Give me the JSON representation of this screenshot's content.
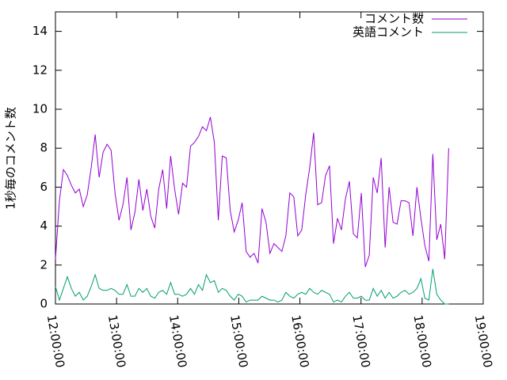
{
  "chart_data": {
    "type": "line",
    "ylabel": "1秒毎のコメント数",
    "x": [
      12,
      12.065,
      12.13,
      12.195,
      12.26,
      12.325,
      12.39,
      12.455,
      12.52,
      12.585,
      12.65,
      12.715,
      12.78,
      12.845,
      12.91,
      12.975,
      13.04,
      13.105,
      13.17,
      13.235,
      13.3,
      13.365,
      13.43,
      13.495,
      13.56,
      13.625,
      13.69,
      13.755,
      13.82,
      13.885,
      13.95,
      14.015,
      14.08,
      14.145,
      14.21,
      14.275,
      14.34,
      14.405,
      14.47,
      14.535,
      14.6,
      14.665,
      14.73,
      14.795,
      14.86,
      14.925,
      14.99,
      15.055,
      15.12,
      15.185,
      15.25,
      15.315,
      15.38,
      15.445,
      15.51,
      15.575,
      15.64,
      15.705,
      15.77,
      15.835,
      15.9,
      15.965,
      16.03,
      16.095,
      16.16,
      16.225,
      16.29,
      16.355,
      16.42,
      16.485,
      16.55,
      16.615,
      16.68,
      16.745,
      16.81,
      16.875,
      16.94,
      17.005,
      17.07,
      17.135,
      17.2,
      17.265,
      17.33,
      17.395,
      17.46,
      17.525,
      17.59,
      17.655,
      17.72,
      17.785,
      17.85,
      17.915,
      17.98,
      18.045,
      18.11,
      18.175,
      18.24,
      18.305,
      18.37,
      18.435
    ],
    "series": [
      {
        "name": "コメント数",
        "color": "#9400d3",
        "values": [
          2.3,
          5.3,
          6.9,
          6.6,
          6.1,
          5.7,
          5.9,
          5.0,
          5.6,
          7.0,
          8.7,
          6.5,
          7.8,
          8.2,
          7.9,
          5.7,
          4.3,
          5.1,
          6.5,
          3.8,
          4.7,
          6.4,
          4.8,
          5.9,
          4.5,
          3.9,
          5.9,
          6.9,
          4.9,
          7.6,
          5.9,
          4.6,
          6.2,
          6.0,
          8.1,
          8.3,
          8.6,
          9.1,
          8.9,
          9.6,
          8.3,
          4.3,
          7.6,
          7.5,
          4.8,
          3.7,
          4.3,
          5.2,
          2.7,
          2.4,
          2.6,
          2.1,
          4.9,
          4.2,
          2.6,
          3.1,
          2.9,
          2.7,
          3.5,
          5.7,
          5.5,
          3.5,
          3.8,
          5.6,
          7.0,
          8.8,
          5.1,
          5.2,
          6.6,
          7.1,
          3.1,
          4.4,
          3.8,
          5.4,
          6.3,
          3.6,
          3.4,
          5.7,
          1.9,
          2.5,
          6.5,
          5.7,
          7.5,
          2.9,
          6.0,
          4.2,
          4.1,
          5.3,
          5.3,
          5.2,
          3.5,
          6.0,
          4.4,
          3.0,
          2.2,
          7.7,
          3.3,
          4.1,
          2.3,
          8.0
        ]
      },
      {
        "name": "英語コメント",
        "color": "#009e73",
        "values": [
          0.9,
          0.2,
          0.8,
          1.4,
          0.8,
          0.4,
          0.6,
          0.2,
          0.4,
          0.9,
          1.5,
          0.8,
          0.7,
          0.7,
          0.8,
          0.7,
          0.5,
          0.5,
          1.0,
          0.4,
          0.4,
          0.8,
          0.6,
          0.8,
          0.4,
          0.3,
          0.6,
          0.7,
          0.5,
          1.1,
          0.5,
          0.5,
          0.4,
          0.5,
          0.8,
          0.5,
          1.0,
          0.7,
          1.5,
          1.1,
          1.2,
          0.6,
          0.8,
          0.7,
          0.4,
          0.2,
          0.5,
          0.4,
          0.1,
          0.2,
          0.2,
          0.2,
          0.4,
          0.3,
          0.2,
          0.2,
          0.1,
          0.2,
          0.6,
          0.4,
          0.3,
          0.5,
          0.6,
          0.5,
          0.8,
          0.6,
          0.5,
          0.7,
          0.6,
          0.5,
          0.1,
          0.2,
          0.1,
          0.4,
          0.6,
          0.3,
          0.3,
          0.4,
          0.2,
          0.2,
          0.8,
          0.4,
          0.7,
          0.3,
          0.6,
          0.3,
          0.4,
          0.6,
          0.7,
          0.5,
          0.6,
          0.8,
          1.3,
          0.3,
          0.2,
          1.8,
          0.5,
          0.2,
          0,
          0
        ]
      }
    ],
    "xlim": [
      12,
      19
    ],
    "xticks": [
      {
        "value": 12,
        "label": "12:00:00"
      },
      {
        "value": 13,
        "label": "13:00:00"
      },
      {
        "value": 14,
        "label": "14:00:00"
      },
      {
        "value": 15,
        "label": "15:00:00"
      },
      {
        "value": 16,
        "label": "16:00:00"
      },
      {
        "value": 17,
        "label": "17:00:00"
      },
      {
        "value": 18,
        "label": "18:00:00"
      },
      {
        "value": 19,
        "label": "19:00:00"
      }
    ],
    "ylim": [
      0,
      15
    ],
    "yticks": [
      0,
      2,
      4,
      6,
      8,
      10,
      12,
      14
    ],
    "legend": "top-right"
  }
}
